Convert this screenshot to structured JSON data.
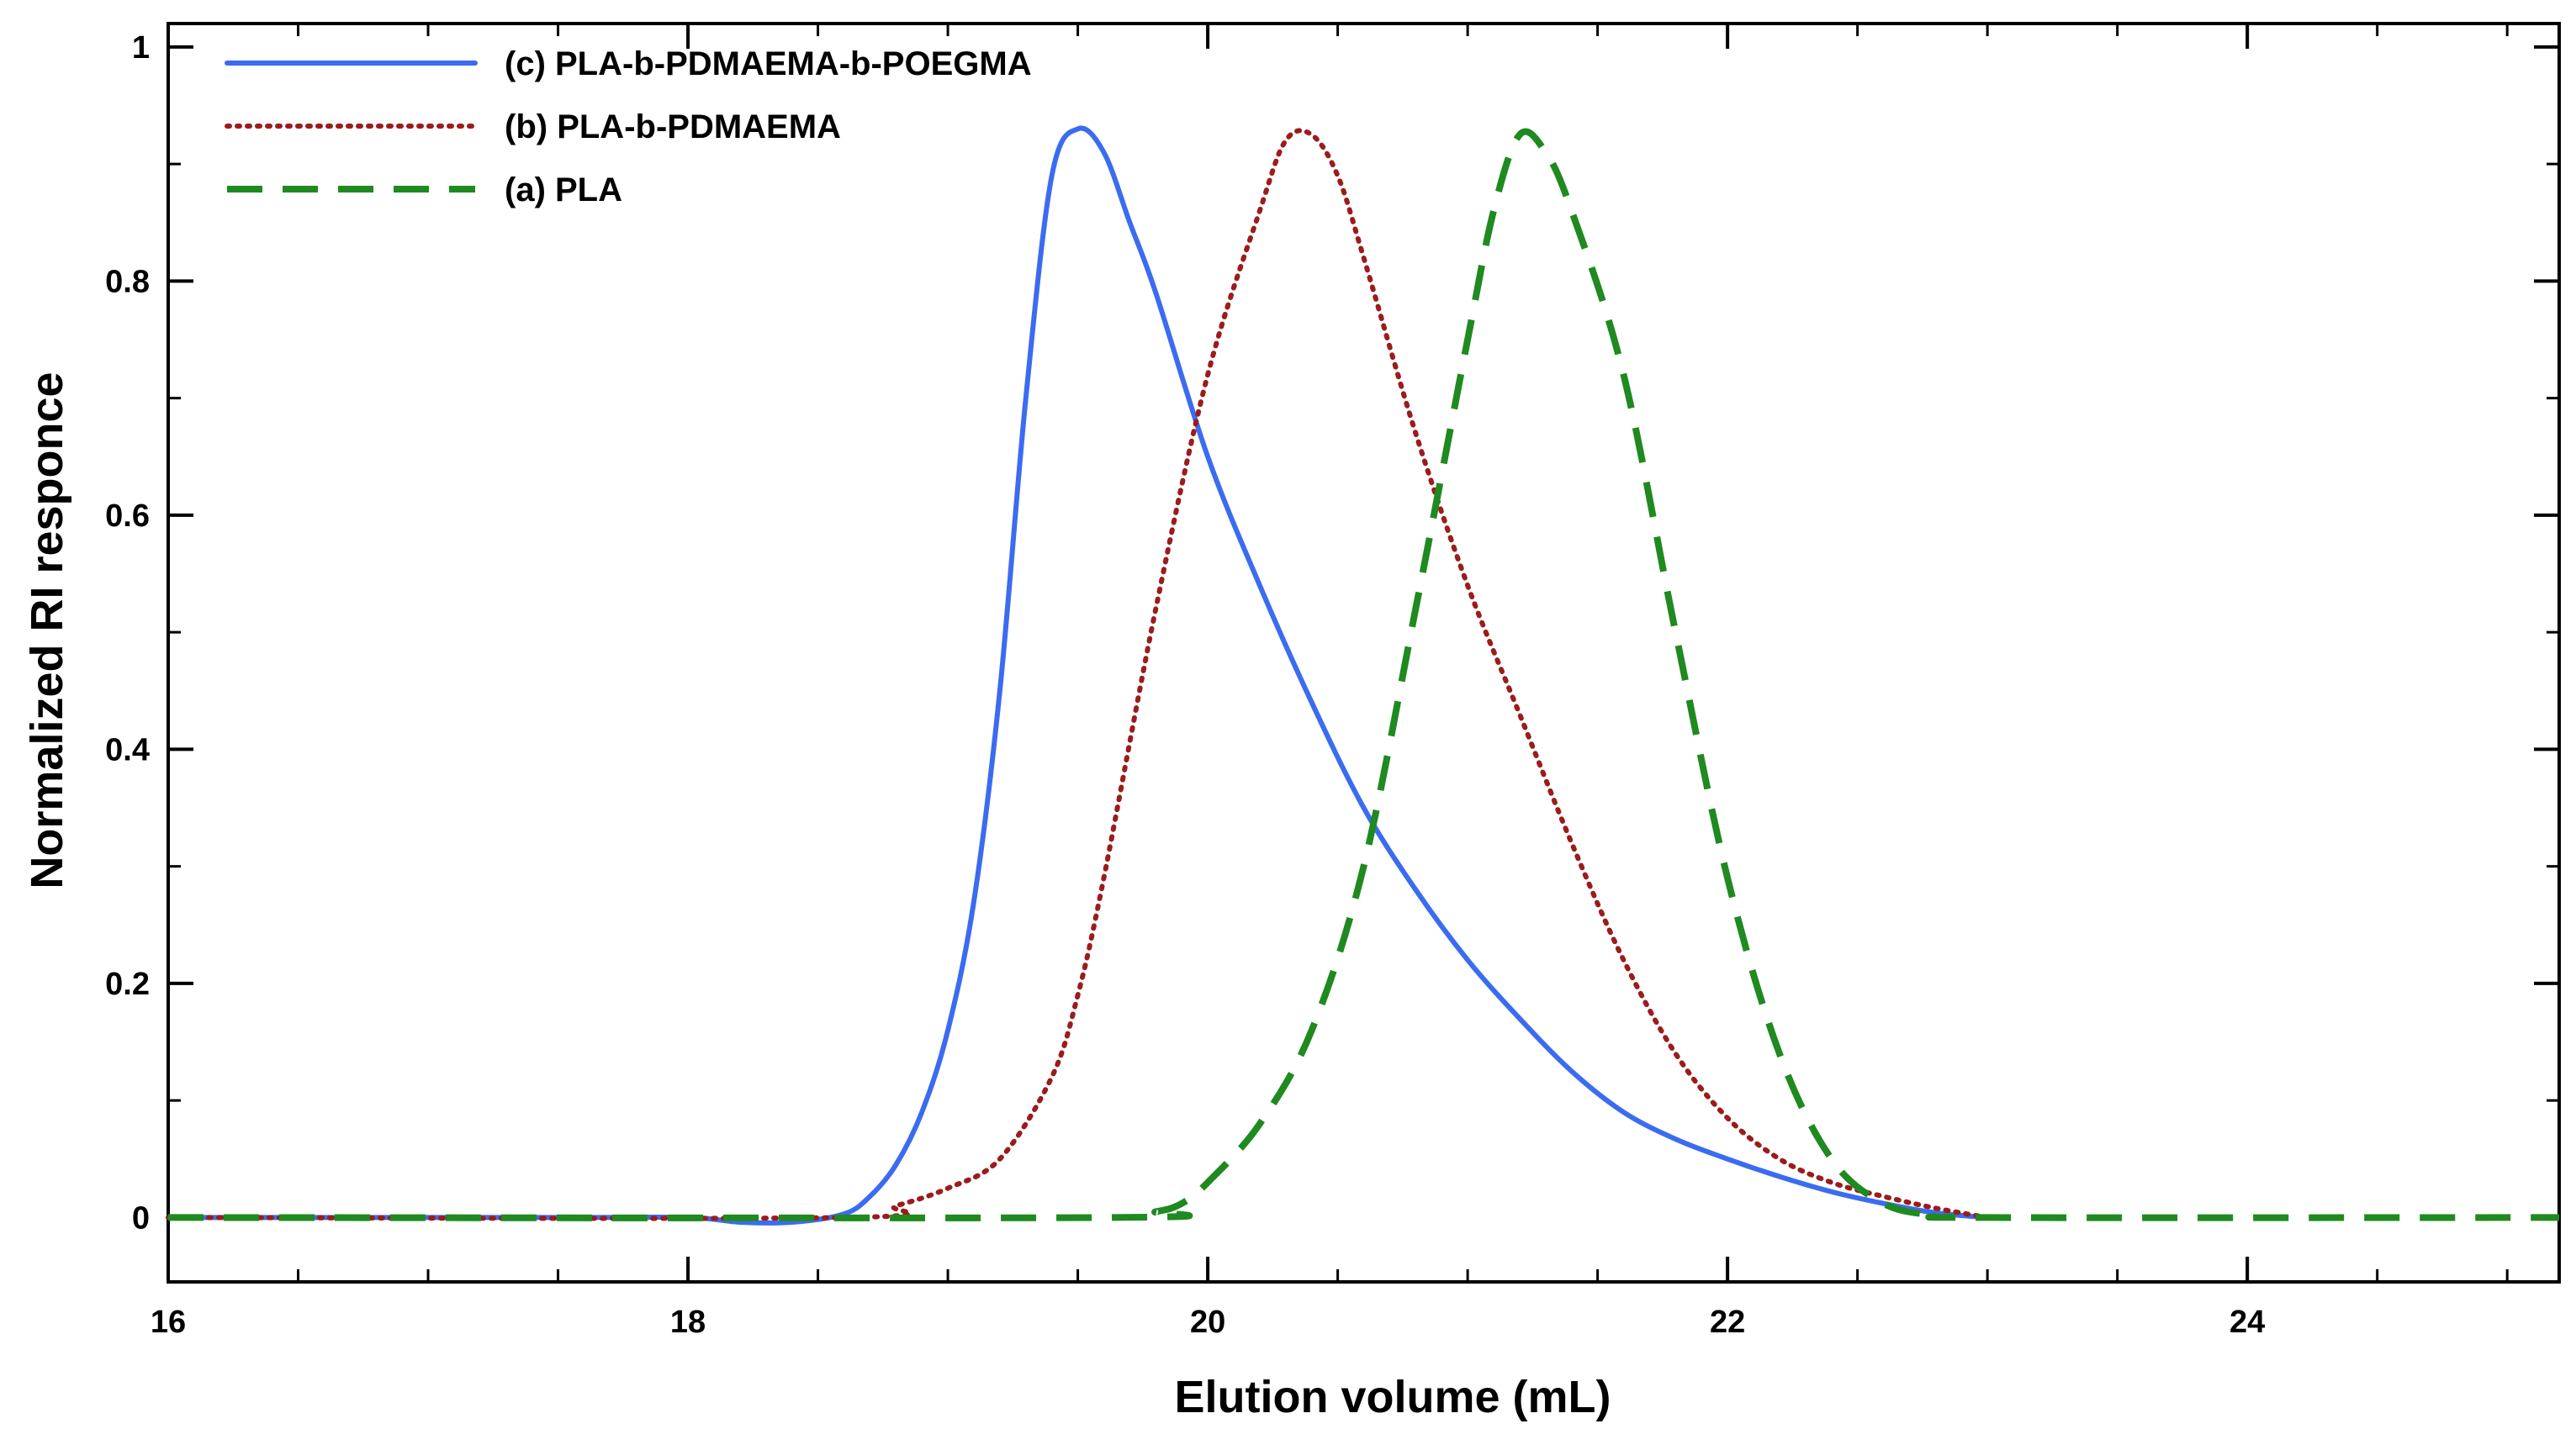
{
  "chart_data": {
    "type": "line",
    "xlabel": "Elution volume (mL)",
    "ylabel": "Normalized RI responce",
    "xlim": [
      16,
      25.2
    ],
    "ylim": [
      -0.055,
      1.02
    ],
    "xticks": [
      16,
      18,
      20,
      22,
      24
    ],
    "xtick_labels": [
      "16",
      "18",
      "20",
      "22",
      "24"
    ],
    "yticks": [
      0,
      0.2,
      0.4,
      0.6,
      0.8,
      1
    ],
    "ytick_labels": [
      "0",
      "0.2",
      "0.4",
      "0.6",
      "0.8",
      "1"
    ],
    "legend_position": "top-left",
    "series": [
      {
        "name": "(c) PLA-b-PDMAEMA-b-POEGMA",
        "color": "#3b6cf0",
        "style": "solid",
        "x": [
          16.0,
          17.5,
          18.0,
          18.2,
          18.4,
          18.6,
          18.7,
          18.8,
          18.9,
          19.0,
          19.1,
          19.2,
          19.3,
          19.4,
          19.5,
          19.6,
          19.7,
          19.8,
          20.0,
          20.2,
          20.4,
          20.6,
          20.8,
          21.0,
          21.2,
          21.4,
          21.6,
          21.8,
          22.0,
          22.2,
          22.4,
          22.6,
          22.8,
          23.0
        ],
        "y": [
          0.0,
          0.0,
          0.0,
          -0.004,
          -0.004,
          0.003,
          0.018,
          0.045,
          0.09,
          0.16,
          0.27,
          0.45,
          0.7,
          0.89,
          0.93,
          0.91,
          0.85,
          0.79,
          0.65,
          0.54,
          0.44,
          0.35,
          0.28,
          0.22,
          0.17,
          0.125,
          0.09,
          0.067,
          0.05,
          0.035,
          0.022,
          0.012,
          0.004,
          0.0
        ]
      },
      {
        "name": "(b) PLA-b-PDMAEMA",
        "color": "#9b1c1c",
        "style": "dotted",
        "x": [
          16.0,
          18.6,
          18.8,
          19.0,
          19.2,
          19.4,
          19.5,
          19.6,
          19.8,
          20.0,
          20.2,
          20.3,
          20.4,
          20.5,
          20.6,
          20.8,
          21.0,
          21.2,
          21.4,
          21.6,
          21.8,
          22.0,
          22.2,
          22.4,
          22.6,
          22.8,
          23.0
        ],
        "y": [
          0.0,
          0.0,
          0.01,
          0.025,
          0.05,
          0.12,
          0.19,
          0.29,
          0.52,
          0.72,
          0.86,
          0.92,
          0.925,
          0.89,
          0.82,
          0.67,
          0.54,
          0.43,
          0.32,
          0.22,
          0.14,
          0.085,
          0.05,
          0.03,
          0.018,
          0.008,
          0.0
        ]
      },
      {
        "name": "(a) PLA",
        "color": "#1f8a1f",
        "style": "dashed",
        "x": [
          16.0,
          19.6,
          19.8,
          19.9,
          20.0,
          20.2,
          20.4,
          20.6,
          20.8,
          21.0,
          21.1,
          21.2,
          21.3,
          21.4,
          21.6,
          21.8,
          22.0,
          22.2,
          22.4,
          22.6,
          22.8,
          23.0,
          25.2
        ],
        "y": [
          0.0,
          0.0,
          0.005,
          0.012,
          0.03,
          0.08,
          0.16,
          0.3,
          0.52,
          0.75,
          0.86,
          0.925,
          0.91,
          0.86,
          0.72,
          0.5,
          0.29,
          0.14,
          0.05,
          0.012,
          0.002,
          0.0,
          0.0
        ]
      }
    ]
  }
}
